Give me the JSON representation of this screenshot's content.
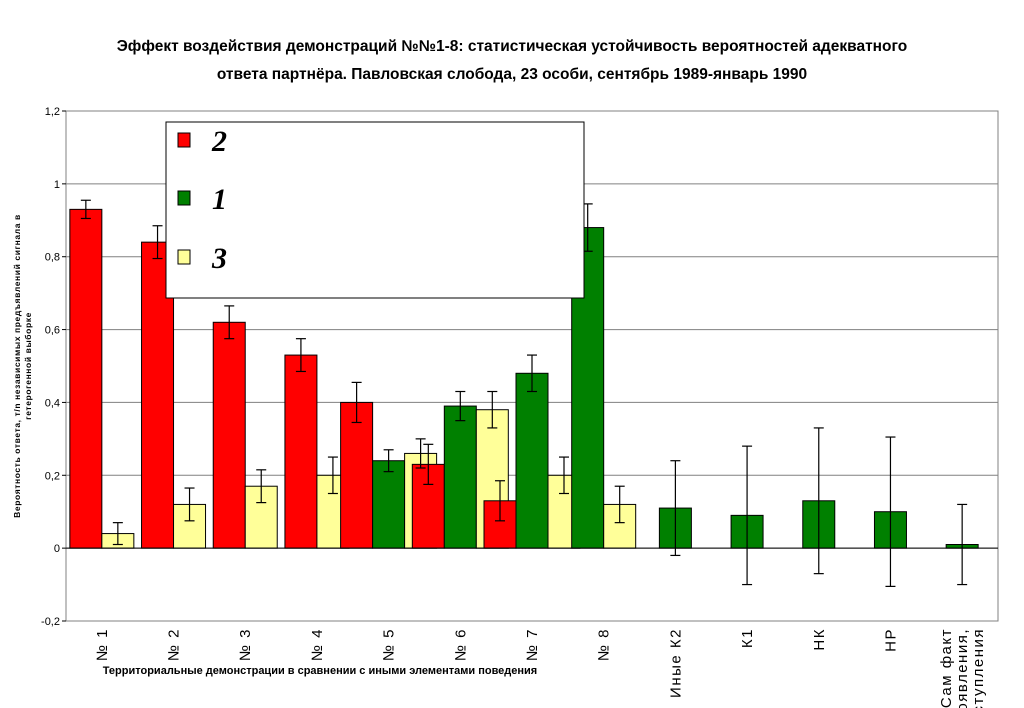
{
  "chart_data": {
    "type": "bar",
    "title_lines": [
      "Эффект воздействия демонстраций №№1-8: статистическая устойчивость вероятностей адекватного",
      "ответа партнёра. Павловская слобода, 23 особи, сентябрь 1989-январь 1990"
    ],
    "ylabel_lines": [
      "Вероятность ответа, т/n независимых предъявлений сигнала в",
      "гетерогенной выборке"
    ],
    "xlabel": "Территориальные демонстрации в сравнении с иными элементами поведения",
    "categories": [
      [
        "№ 1"
      ],
      [
        "№ 2"
      ],
      [
        "№ 3"
      ],
      [
        "№ 4"
      ],
      [
        "№ 5"
      ],
      [
        "№ 6"
      ],
      [
        "№ 7"
      ],
      [
        "№ 8"
      ],
      [
        "Иные К2"
      ],
      [
        "К1"
      ],
      [
        "НК"
      ],
      [
        "НР"
      ],
      [
        "Сам факт",
        "появления,",
        "отступления"
      ]
    ],
    "ylim": [
      -0.2,
      1.2
    ],
    "yticks": [
      -0.2,
      0,
      0.2,
      0.4,
      0.6,
      0.8,
      1,
      1.2
    ],
    "ytick_labels": [
      "-0,2",
      "0",
      "0,2",
      "0,4",
      "0,6",
      "0,8",
      "1",
      "1,2"
    ],
    "grid": true,
    "legend_position": "top-left inside plot",
    "series": [
      {
        "name": "2",
        "color": "#ff0000",
        "values": [
          0.93,
          0.84,
          0.62,
          0.53,
          0.4,
          0.23,
          0.13,
          null,
          null,
          null,
          null,
          null,
          null
        ],
        "errors": [
          0.025,
          0.045,
          0.045,
          0.045,
          0.055,
          0.055,
          0.055,
          null,
          null,
          null,
          null,
          null,
          null
        ]
      },
      {
        "name": "1",
        "color": "#008000",
        "values": [
          null,
          null,
          null,
          null,
          0.24,
          0.39,
          0.48,
          0.88,
          0.11,
          0.09,
          0.13,
          0.1,
          0.01
        ],
        "errors": [
          null,
          null,
          null,
          null,
          0.03,
          0.04,
          0.05,
          0.065,
          0.13,
          0.19,
          0.2,
          0.205,
          0.11
        ]
      },
      {
        "name": "3",
        "color": "#ffff99",
        "values": [
          0.04,
          0.12,
          0.17,
          0.2,
          0.26,
          0.38,
          0.2,
          0.12,
          null,
          null,
          null,
          null,
          null
        ],
        "errors": [
          0.03,
          0.045,
          0.045,
          0.05,
          0.04,
          0.05,
          0.05,
          0.05,
          null,
          null,
          null,
          null,
          null
        ]
      }
    ]
  }
}
